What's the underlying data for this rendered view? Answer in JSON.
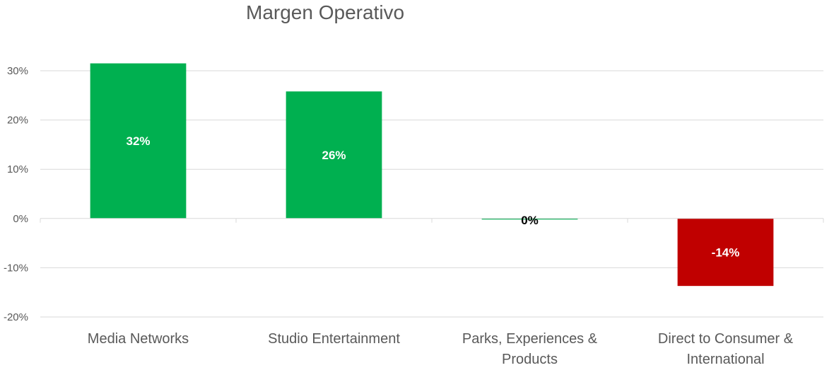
{
  "chart_data": {
    "type": "bar",
    "title": "Margen Operativo",
    "categories": [
      [
        "Media Networks"
      ],
      [
        "Studio Entertainment"
      ],
      [
        "Parks, Experiences &",
        "Products"
      ],
      [
        "Direct to Consumer &",
        "International"
      ]
    ],
    "values": [
      31.5,
      25.8,
      -0.2,
      -13.7
    ],
    "data_labels": [
      "32%",
      "26%",
      "0%",
      "-14%"
    ],
    "bar_colors": [
      "#00b050",
      "#00b050",
      "#00b050",
      "#c00000"
    ],
    "data_label_colors": [
      "#ffffff",
      "#ffffff",
      "#000000",
      "#ffffff"
    ],
    "y_ticks": [
      30,
      20,
      10,
      0,
      -10,
      -20
    ],
    "y_tick_labels": [
      "30%",
      "20%",
      "10%",
      "0%",
      "-10%",
      "-20%"
    ],
    "ylim": [
      -20,
      30
    ],
    "grid": true,
    "legend": "none"
  }
}
